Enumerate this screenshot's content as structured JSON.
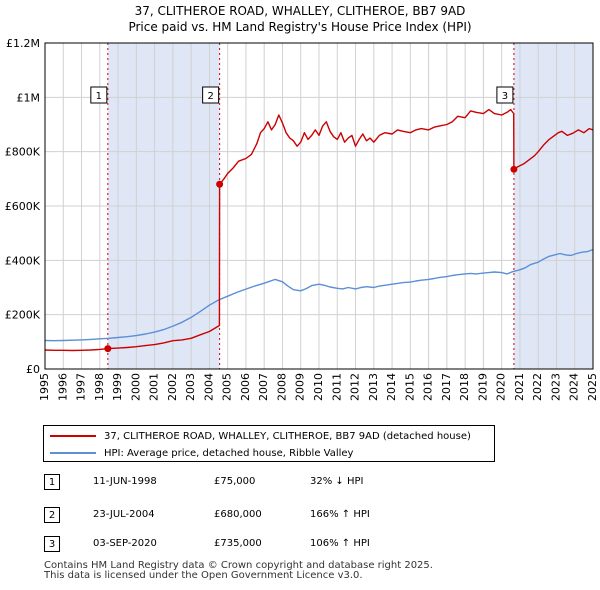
{
  "title_line1": "37, CLITHEROE ROAD, WHALLEY, CLITHEROE, BB7 9AD",
  "title_line2": "Price paid vs. HM Land Registry's House Price Index (HPI)",
  "chart_data": {
    "type": "line",
    "title": "37, CLITHEROE ROAD, WHALLEY, CLITHEROE, BB7 9AD — Price paid vs. HM Land Registry's House Price Index (HPI)",
    "xlabel": "",
    "ylabel": "",
    "xlim": [
      1995,
      2025
    ],
    "ylim": [
      0,
      1200000
    ],
    "x_ticks": [
      1995,
      1996,
      1997,
      1998,
      1999,
      2000,
      2001,
      2002,
      2003,
      2004,
      2005,
      2006,
      2007,
      2008,
      2009,
      2010,
      2011,
      2012,
      2013,
      2014,
      2015,
      2016,
      2017,
      2018,
      2019,
      2020,
      2021,
      2022,
      2023,
      2024,
      2025
    ],
    "y_ticks": [
      0,
      200000,
      400000,
      600000,
      800000,
      1000000,
      1200000
    ],
    "y_tick_labels": [
      "£0",
      "£200K",
      "£400K",
      "£600K",
      "£800K",
      "£1M",
      "£1.2M"
    ],
    "grid": true,
    "colors": {
      "property": "#cc0000",
      "hpi": "#5b8fd6",
      "shade": "#dfe7f7",
      "grid": "#d0d0d0"
    },
    "series": [
      {
        "name": "37, CLITHEROE ROAD, WHALLEY, CLITHEROE, BB7 9AD (detached house)",
        "color": "#cc0000",
        "points": [
          [
            1995.0,
            70000
          ],
          [
            1995.5,
            69000
          ],
          [
            1996.0,
            69000
          ],
          [
            1996.5,
            68000
          ],
          [
            1997.0,
            69000
          ],
          [
            1997.5,
            70000
          ],
          [
            1998.0,
            72000
          ],
          [
            1998.44,
            75000
          ],
          [
            1999.0,
            77000
          ],
          [
            1999.5,
            79000
          ],
          [
            2000.0,
            82000
          ],
          [
            2000.5,
            86000
          ],
          [
            2001.0,
            90000
          ],
          [
            2001.5,
            96000
          ],
          [
            2002.0,
            104000
          ],
          [
            2002.5,
            107000
          ],
          [
            2003.0,
            113000
          ],
          [
            2003.5,
            126000
          ],
          [
            2004.0,
            138000
          ],
          [
            2004.55,
            160000
          ],
          [
            2004.56,
            680000
          ],
          [
            2004.8,
            700000
          ],
          [
            2005.0,
            720000
          ],
          [
            2005.3,
            740000
          ],
          [
            2005.6,
            765000
          ],
          [
            2006.0,
            775000
          ],
          [
            2006.3,
            790000
          ],
          [
            2006.6,
            830000
          ],
          [
            2006.8,
            870000
          ],
          [
            2007.0,
            885000
          ],
          [
            2007.2,
            910000
          ],
          [
            2007.4,
            880000
          ],
          [
            2007.6,
            900000
          ],
          [
            2007.8,
            935000
          ],
          [
            2008.0,
            905000
          ],
          [
            2008.2,
            870000
          ],
          [
            2008.4,
            850000
          ],
          [
            2008.6,
            840000
          ],
          [
            2008.8,
            820000
          ],
          [
            2009.0,
            835000
          ],
          [
            2009.2,
            870000
          ],
          [
            2009.4,
            845000
          ],
          [
            2009.6,
            860000
          ],
          [
            2009.8,
            880000
          ],
          [
            2010.0,
            860000
          ],
          [
            2010.2,
            895000
          ],
          [
            2010.4,
            910000
          ],
          [
            2010.6,
            875000
          ],
          [
            2010.8,
            855000
          ],
          [
            2011.0,
            845000
          ],
          [
            2011.2,
            870000
          ],
          [
            2011.4,
            835000
          ],
          [
            2011.6,
            850000
          ],
          [
            2011.8,
            860000
          ],
          [
            2012.0,
            820000
          ],
          [
            2012.2,
            845000
          ],
          [
            2012.4,
            865000
          ],
          [
            2012.6,
            840000
          ],
          [
            2012.8,
            850000
          ],
          [
            2013.0,
            835000
          ],
          [
            2013.3,
            860000
          ],
          [
            2013.6,
            870000
          ],
          [
            2014.0,
            865000
          ],
          [
            2014.3,
            880000
          ],
          [
            2014.6,
            875000
          ],
          [
            2015.0,
            870000
          ],
          [
            2015.3,
            880000
          ],
          [
            2015.6,
            885000
          ],
          [
            2016.0,
            880000
          ],
          [
            2016.3,
            890000
          ],
          [
            2016.6,
            895000
          ],
          [
            2017.0,
            900000
          ],
          [
            2017.3,
            910000
          ],
          [
            2017.6,
            930000
          ],
          [
            2018.0,
            925000
          ],
          [
            2018.3,
            950000
          ],
          [
            2018.6,
            945000
          ],
          [
            2019.0,
            940000
          ],
          [
            2019.3,
            955000
          ],
          [
            2019.6,
            940000
          ],
          [
            2020.0,
            935000
          ],
          [
            2020.3,
            945000
          ],
          [
            2020.5,
            955000
          ],
          [
            2020.66,
            940000
          ],
          [
            2020.67,
            735000
          ],
          [
            2020.9,
            745000
          ],
          [
            2021.2,
            755000
          ],
          [
            2021.5,
            770000
          ],
          [
            2021.8,
            785000
          ],
          [
            2022.0,
            800000
          ],
          [
            2022.3,
            825000
          ],
          [
            2022.6,
            845000
          ],
          [
            2022.9,
            860000
          ],
          [
            2023.1,
            870000
          ],
          [
            2023.3,
            875000
          ],
          [
            2023.6,
            860000
          ],
          [
            2023.9,
            868000
          ],
          [
            2024.2,
            880000
          ],
          [
            2024.5,
            870000
          ],
          [
            2024.8,
            885000
          ],
          [
            2025.0,
            880000
          ]
        ]
      },
      {
        "name": "HPI: Average price, detached house, Ribble Valley",
        "color": "#5b8fd6",
        "points": [
          [
            1995.0,
            105000
          ],
          [
            1995.5,
            104000
          ],
          [
            1996.0,
            105000
          ],
          [
            1996.5,
            106000
          ],
          [
            1997.0,
            107000
          ],
          [
            1997.5,
            109000
          ],
          [
            1998.0,
            111000
          ],
          [
            1998.5,
            113000
          ],
          [
            1999.0,
            116000
          ],
          [
            1999.5,
            119000
          ],
          [
            2000.0,
            123000
          ],
          [
            2000.5,
            129000
          ],
          [
            2001.0,
            136000
          ],
          [
            2001.5,
            145000
          ],
          [
            2002.0,
            158000
          ],
          [
            2002.5,
            172000
          ],
          [
            2003.0,
            190000
          ],
          [
            2003.5,
            212000
          ],
          [
            2004.0,
            235000
          ],
          [
            2004.5,
            254000
          ],
          [
            2005.0,
            268000
          ],
          [
            2005.5,
            282000
          ],
          [
            2006.0,
            294000
          ],
          [
            2006.5,
            306000
          ],
          [
            2007.0,
            316000
          ],
          [
            2007.3,
            323000
          ],
          [
            2007.6,
            330000
          ],
          [
            2008.0,
            321000
          ],
          [
            2008.3,
            305000
          ],
          [
            2008.6,
            292000
          ],
          [
            2009.0,
            288000
          ],
          [
            2009.3,
            296000
          ],
          [
            2009.6,
            307000
          ],
          [
            2010.0,
            312000
          ],
          [
            2010.3,
            308000
          ],
          [
            2010.6,
            302000
          ],
          [
            2011.0,
            297000
          ],
          [
            2011.3,
            295000
          ],
          [
            2011.6,
            300000
          ],
          [
            2012.0,
            295000
          ],
          [
            2012.3,
            300000
          ],
          [
            2012.6,
            303000
          ],
          [
            2013.0,
            300000
          ],
          [
            2013.3,
            305000
          ],
          [
            2013.6,
            308000
          ],
          [
            2014.0,
            312000
          ],
          [
            2014.3,
            315000
          ],
          [
            2014.6,
            318000
          ],
          [
            2015.0,
            320000
          ],
          [
            2015.3,
            324000
          ],
          [
            2015.6,
            327000
          ],
          [
            2016.0,
            330000
          ],
          [
            2016.3,
            333000
          ],
          [
            2016.6,
            337000
          ],
          [
            2017.0,
            340000
          ],
          [
            2017.3,
            344000
          ],
          [
            2017.6,
            347000
          ],
          [
            2018.0,
            350000
          ],
          [
            2018.3,
            352000
          ],
          [
            2018.6,
            350000
          ],
          [
            2019.0,
            353000
          ],
          [
            2019.3,
            355000
          ],
          [
            2019.6,
            357000
          ],
          [
            2020.0,
            355000
          ],
          [
            2020.3,
            350000
          ],
          [
            2020.6,
            358000
          ],
          [
            2021.0,
            365000
          ],
          [
            2021.3,
            373000
          ],
          [
            2021.6,
            385000
          ],
          [
            2022.0,
            393000
          ],
          [
            2022.3,
            405000
          ],
          [
            2022.6,
            415000
          ],
          [
            2022.9,
            420000
          ],
          [
            2023.2,
            425000
          ],
          [
            2023.5,
            420000
          ],
          [
            2023.8,
            418000
          ],
          [
            2024.1,
            425000
          ],
          [
            2024.4,
            430000
          ],
          [
            2024.7,
            432000
          ],
          [
            2025.0,
            440000
          ]
        ]
      }
    ],
    "sales": [
      {
        "label": "1",
        "x": 1998.44,
        "value": 75000
      },
      {
        "label": "2",
        "x": 2004.56,
        "value": 680000
      },
      {
        "label": "3",
        "x": 2020.67,
        "value": 735000
      }
    ],
    "shaded_ranges": [
      [
        1998.44,
        2004.56
      ],
      [
        2020.67,
        2025.0
      ]
    ]
  },
  "legend": {
    "property_label": "37, CLITHEROE ROAD, WHALLEY, CLITHEROE, BB7 9AD (detached house)",
    "hpi_label": "HPI: Average price, detached house, Ribble Valley"
  },
  "sales_table": [
    {
      "num": "1",
      "date": "11-JUN-1998",
      "price": "£75,000",
      "hpi": "32% ↓ HPI"
    },
    {
      "num": "2",
      "date": "23-JUL-2004",
      "price": "£680,000",
      "hpi": "166% ↑ HPI"
    },
    {
      "num": "3",
      "date": "03-SEP-2020",
      "price": "£735,000",
      "hpi": "106% ↑ HPI"
    }
  ],
  "footer": {
    "line1": "Contains HM Land Registry data © Crown copyright and database right 2025.",
    "line2": "This data is licensed under the Open Government Licence v3.0."
  }
}
